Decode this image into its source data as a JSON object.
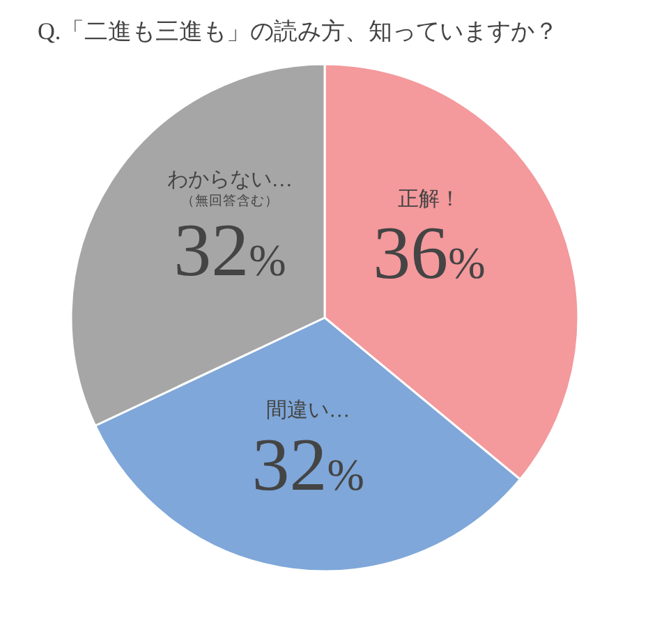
{
  "chart_data": {
    "type": "pie",
    "title": "Q.「二進も三進も」の読み方、知っていますか？",
    "categories": [
      "正解！",
      "間違い…",
      "わからない…\n（無回答含む）"
    ],
    "values": [
      36,
      32,
      32
    ],
    "colors": [
      "#f4999c",
      "#7fa7d9",
      "#a6a6a6"
    ],
    "value_labels": [
      "36%",
      "32%",
      "32%"
    ]
  }
}
